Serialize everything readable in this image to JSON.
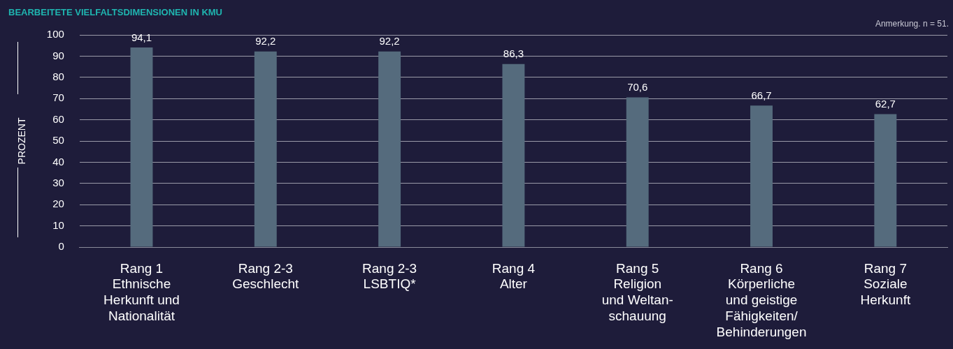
{
  "chart_data": {
    "type": "bar",
    "title": "BEARBEITETE VIELFALTSDIMENSIONEN IN KMU",
    "ylabel": "PROZENT",
    "categories": [
      "Rang 1\nEthnische\nHerkunft und\nNationalität",
      "Rang 2-3\nGeschlecht",
      "Rang 2-3\nLSBTIQ*",
      "Rang 4\nAlter",
      "Rang 5\nReligion\nund Weltan-\nschauung",
      "Rang 6\nKörperliche\nund geistige\nFähigkeiten/\nBehinderungen",
      "Rang 7\nSoziale\nHerkunft"
    ],
    "values": [
      94.1,
      92.2,
      92.2,
      86.3,
      70.6,
      66.7,
      62.7
    ],
    "color": "#556b7d",
    "ylim": [
      0,
      100
    ],
    "yticks": [
      0,
      10,
      20,
      30,
      40,
      50,
      60,
      70,
      80,
      90,
      100
    ],
    "grid": "y",
    "value_labels": [
      "94,1",
      "92,2",
      "92,2",
      "86,3",
      "70,6",
      "66,7",
      "62,7"
    ],
    "annotations": [
      "Anmerkung. n = 51."
    ]
  }
}
